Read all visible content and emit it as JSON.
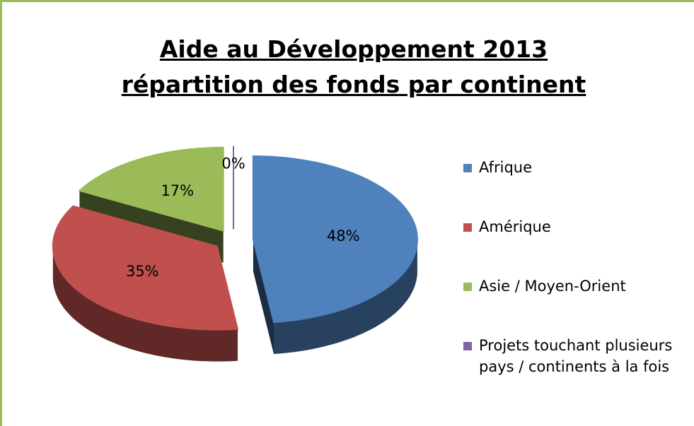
{
  "chart_data": {
    "type": "pie",
    "title": [
      "Aide au Développement 2013",
      "répartition des fonds par continent"
    ],
    "categories": [
      "Afrique",
      "Amérique",
      "Asie / Moyen-Orient",
      "Projets touchant plusieurs pays / continents à la fois"
    ],
    "values": [
      48,
      35,
      17,
      0
    ],
    "value_labels": [
      "48%",
      "35%",
      "17%",
      "0%"
    ],
    "colors": [
      "#4f81bd",
      "#c0504d",
      "#9bbb59",
      "#8064a2"
    ],
    "legend": "right"
  }
}
